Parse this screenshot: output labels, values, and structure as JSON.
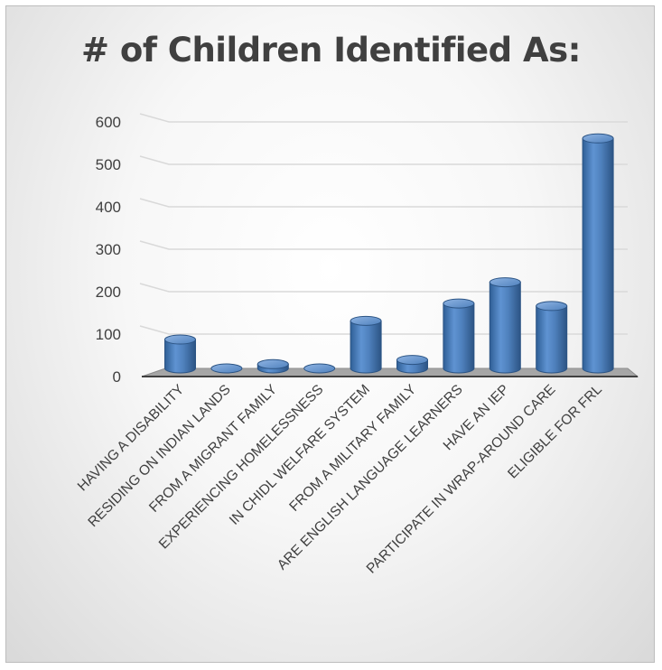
{
  "chart_data": {
    "type": "bar",
    "title": "# of Children Identified As:",
    "categories": [
      "HAVING A DISABILITY",
      "RESIDING ON INDIAN LANDS",
      "FROM A MIGRANT FAMILY",
      "EXPERIENCING HOMELESSNESS",
      "IN CHIDL WELFARE SYSTEM",
      "FROM A MILITARY FAMILY",
      "ARE ENGLISH LANGUAGE LEARNERS",
      "HAVE AN IEP",
      "PARTICIPATE IN WRAP-AROUND CARE",
      "ELIGIBLE FOR FRL"
    ],
    "values": [
      68,
      0,
      10,
      0,
      112,
      20,
      153,
      203,
      147,
      542
    ],
    "yticks": [
      0,
      100,
      200,
      300,
      400,
      500,
      600
    ],
    "ylim": [
      0,
      600
    ],
    "xlabel": "",
    "ylabel": "",
    "legend": "none",
    "grid": true,
    "colors": {
      "bar": "#4f81bd",
      "floor": "#a6a6a6",
      "axis": "#404040"
    }
  }
}
